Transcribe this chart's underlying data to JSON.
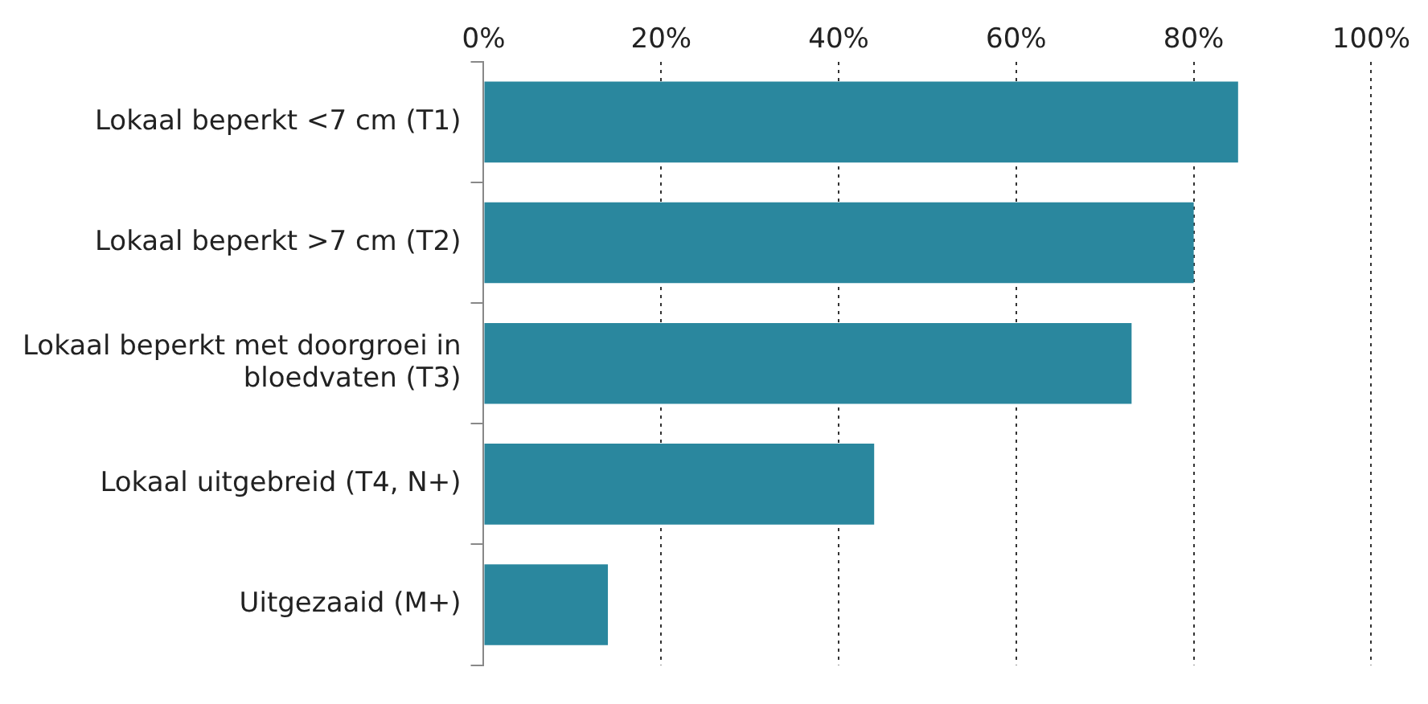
{
  "chart_data": {
    "type": "bar",
    "orientation": "horizontal",
    "categories": [
      "Lokaal beperkt <7 cm (T1)",
      "Lokaal beperkt >7 cm (T2)",
      "Lokaal beperkt met doorgroei in bloedvaten (T3)",
      "Lokaal uitgebreid (T4, N+)",
      "Uitgezaaid (M+)"
    ],
    "values": [
      85,
      80,
      73,
      44,
      14
    ],
    "color": "#2a879e",
    "xlim": [
      0,
      100
    ],
    "xticks": [
      {
        "value": 0,
        "label": "0%"
      },
      {
        "value": 20,
        "label": "20%"
      },
      {
        "value": 40,
        "label": "40%"
      },
      {
        "value": 60,
        "label": "60%"
      },
      {
        "value": 80,
        "label": "80%"
      },
      {
        "value": 100,
        "label": "100%"
      }
    ],
    "grid": "x"
  }
}
